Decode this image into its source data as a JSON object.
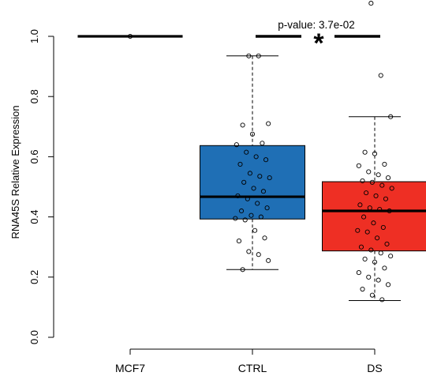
{
  "chart_data": {
    "type": "box",
    "ylabel": "RNA45S Relative Expression",
    "ylim": [
      0.0,
      1.0
    ],
    "yticks": [
      "0.0",
      "0.2",
      "0.4",
      "0.6",
      "0.8",
      "1.0"
    ],
    "categories": [
      "MCF7",
      "CTRL",
      "DS"
    ],
    "colors": {
      "MCF7": "#ffffff",
      "CTRL": "#1f6fb5",
      "DS": "#ee2f24"
    },
    "boxes": [
      {
        "category": "MCF7",
        "min": 1.0,
        "q1": 1.0,
        "median": 1.0,
        "q3": 1.0,
        "max": 1.0
      },
      {
        "category": "CTRL",
        "min": 0.225,
        "q1": 0.393,
        "median": 0.467,
        "q3": 0.637,
        "max": 0.935
      },
      {
        "category": "DS",
        "min": 0.122,
        "q1": 0.287,
        "median": 0.42,
        "q3": 0.517,
        "max": 0.733
      }
    ],
    "points": {
      "MCF7": [
        1.0
      ],
      "CTRL": [
        0.935,
        0.935,
        0.71,
        0.705,
        0.675,
        0.645,
        0.64,
        0.615,
        0.6,
        0.59,
        0.575,
        0.545,
        0.535,
        0.53,
        0.515,
        0.495,
        0.485,
        0.47,
        0.46,
        0.445,
        0.43,
        0.42,
        0.405,
        0.4,
        0.395,
        0.39,
        0.355,
        0.33,
        0.32,
        0.285,
        0.275,
        0.255,
        0.225
      ],
      "DS": [
        1.11,
        0.87,
        0.733,
        0.615,
        0.61,
        0.575,
        0.57,
        0.55,
        0.54,
        0.53,
        0.52,
        0.515,
        0.505,
        0.495,
        0.48,
        0.47,
        0.46,
        0.44,
        0.43,
        0.425,
        0.42,
        0.4,
        0.38,
        0.365,
        0.355,
        0.35,
        0.33,
        0.31,
        0.3,
        0.29,
        0.28,
        0.27,
        0.26,
        0.25,
        0.23,
        0.215,
        0.2,
        0.19,
        0.175,
        0.16,
        0.14,
        0.125
      ]
    },
    "annotations": [
      {
        "text": "p-value: 3.7e-02",
        "between": [
          "CTRL",
          "DS"
        ]
      },
      {
        "text": "*",
        "between": [
          "CTRL",
          "DS"
        ]
      }
    ]
  }
}
